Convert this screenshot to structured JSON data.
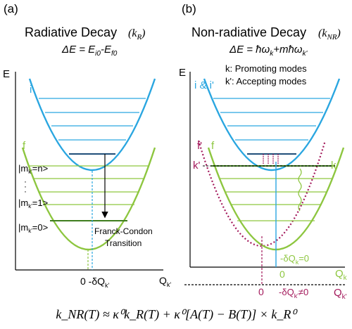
{
  "colors": {
    "blue": "#2aa6e0",
    "green": "#8dc63f",
    "magenta": "#a3195b",
    "darkblue": "#1f4e79",
    "darkgreen": "#3f7d1e",
    "black": "#000000"
  },
  "panel_a": {
    "label": "(a)",
    "title": "Radiative Decay",
    "title_symbol": "(k",
    "title_sub": "R",
    "title_close": ")",
    "equation": "ΔE = E",
    "eq_sub1": "i0",
    "eq_mid": "-E",
    "eq_sub2": "f0",
    "axis_e": "E",
    "axis_q": "Q",
    "axis_q_sub": "k'",
    "state_i": "i",
    "state_f": "f",
    "level_n": "|m",
    "level_n_sub": "k'",
    "level_n_val": "=n>",
    "level_1": "|m",
    "level_1_sub": "k'",
    "level_1_val": "=1>",
    "level_0": "|m",
    "level_0_sub": "k'",
    "level_0_val": "=0>",
    "dots": "·\n·\n·",
    "transition_line1": "Franck-Condon",
    "transition_line2": "Transition",
    "shift_label": "0 -δQ",
    "shift_sub": "k'"
  },
  "panel_b": {
    "label": "(b)",
    "title": "Non-radiative Decay",
    "title_symbol": "(k",
    "title_sub": "NR",
    "title_close": ")",
    "equation": "ΔE = ħω",
    "eq_sub1": "k",
    "eq_mid": "+mħω",
    "eq_sub2": "k'",
    "legend_k": "k: Promoting modes",
    "legend_kp": "k': Accepting modes",
    "axis_e": "E",
    "state_ii": "i & i'",
    "state_fp": "f'",
    "state_f": "f",
    "label_kp": "k'",
    "label_k": "k",
    "zero_k": "0",
    "dq_k": "-δQ",
    "dq_k_sub": "k",
    "dq_k_val": "=0",
    "axis_qk": "Q",
    "axis_qk_sub": "k",
    "zero_kp": "0",
    "dq_kp": "-δQ",
    "dq_kp_sub": "k'",
    "dq_kp_val": "≠0",
    "axis_qkp": "Q",
    "axis_qkp_sub": "k'"
  },
  "formula": "k_NR(T) ≈ κ⁰k_R(T) + κ⁰[A(T) − B(T)] × k_R⁰"
}
